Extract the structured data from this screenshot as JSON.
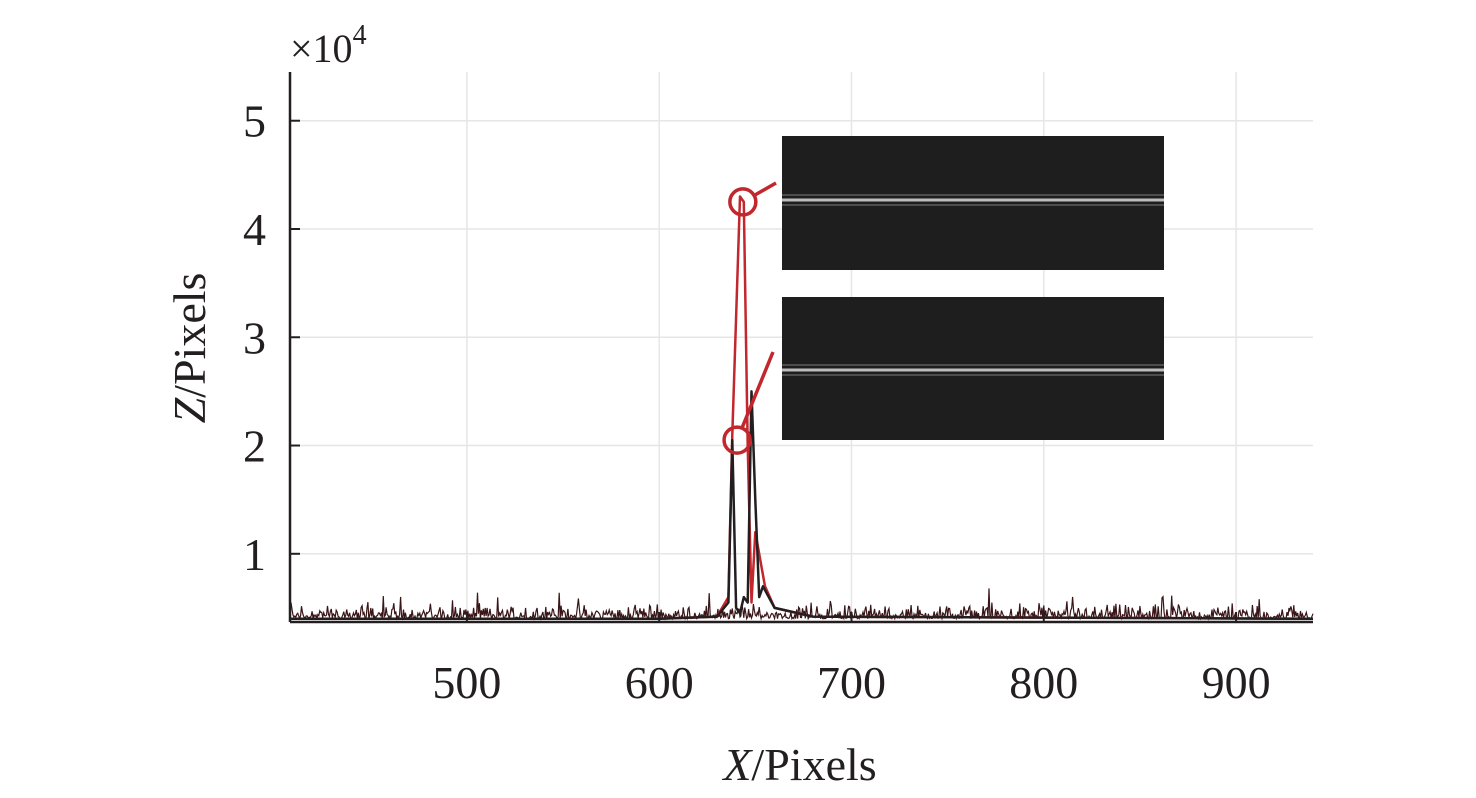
{
  "chart_data": {
    "type": "line",
    "title": "",
    "xlabel_var": "X",
    "xlabel_unit": "/Pixels",
    "ylabel_var": "Z",
    "ylabel_unit": "/Pixels",
    "y_multiplier_base": "×10",
    "y_multiplier_exp": "4",
    "xlim": [
      408,
      940
    ],
    "ylim": [
      0.37,
      5.45
    ],
    "x_ticks": [
      500,
      600,
      700,
      800,
      900
    ],
    "x_tick_labels": [
      "500",
      "600",
      "700",
      "800",
      "900"
    ],
    "y_ticks": [
      1,
      2,
      3,
      4,
      5
    ],
    "y_tick_labels": [
      "1",
      "2",
      "3",
      "4",
      "5"
    ],
    "grid": true,
    "series": [
      {
        "color": "#c1272d",
        "x": [
          408,
          600,
          630,
          636,
          638,
          642,
          644,
          646,
          648,
          650,
          655,
          660,
          680,
          940
        ],
        "y": [
          0.4,
          0.4,
          0.42,
          0.6,
          2.1,
          4.3,
          4.25,
          2.0,
          0.55,
          1.2,
          0.7,
          0.5,
          0.42,
          0.4
        ]
      },
      {
        "color": "#231f20",
        "x": [
          408,
          600,
          630,
          636,
          638,
          640,
          642,
          644,
          646,
          648,
          650,
          652,
          654,
          660,
          680,
          940
        ],
        "y": [
          0.4,
          0.4,
          0.42,
          0.55,
          2.05,
          0.5,
          0.45,
          0.6,
          0.55,
          2.5,
          1.5,
          0.6,
          0.7,
          0.5,
          0.42,
          0.4
        ]
      }
    ],
    "noise_floor": 0.4,
    "noise_amplitude": 0.15,
    "markers": [
      {
        "x": 643.5,
        "y": 4.25,
        "color": "#c1272d"
      },
      {
        "x": 640.5,
        "y": 2.05,
        "color": "#c1272d"
      }
    ],
    "inset_images": [
      {
        "description_color": "#1e1e1e",
        "line_color": "#d9d9d9"
      },
      {
        "description_color": "#1e1e1e",
        "line_color": "#d9d9d9"
      }
    ]
  }
}
